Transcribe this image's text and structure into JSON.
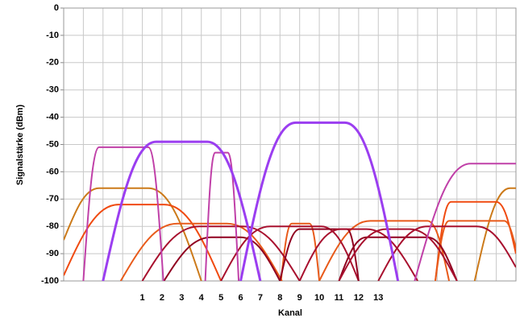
{
  "chart_data": {
    "type": "line",
    "x_label": "Kanal",
    "y_label": "Signalstärke (dBm)",
    "xlim": [
      -3,
      20
    ],
    "ylim": [
      -100,
      0
    ],
    "yticks": [
      0,
      -10,
      -20,
      -30,
      -40,
      -50,
      -60,
      -70,
      -80,
      -90,
      -100
    ],
    "xticks": [
      1,
      2,
      3,
      4,
      5,
      6,
      7,
      8,
      9,
      10,
      11,
      12,
      13
    ],
    "xgrid": [
      -3,
      -2,
      -1,
      0,
      1,
      2,
      3,
      4,
      5,
      6,
      7,
      8,
      9,
      10,
      11,
      12,
      13,
      14,
      15,
      16,
      17,
      18,
      19,
      20
    ],
    "grid": true,
    "series": [
      {
        "color": "#cc7a1a",
        "width": 2,
        "x": [
          -3,
          -1.2,
          1.3,
          4
        ],
        "values": [
          -85,
          -66,
          -66,
          -100
        ]
      },
      {
        "color": "#cc7a1a",
        "width": 2,
        "x": [
          17.9,
          19.7,
          20
        ],
        "values": [
          -100,
          -66,
          -66
        ]
      },
      {
        "color": "#f04a10",
        "width": 2,
        "x": [
          -3,
          -0.2,
          2.1,
          5
        ],
        "values": [
          -98,
          -72,
          -72,
          -100
        ]
      },
      {
        "color": "#f04a10",
        "width": 2,
        "x": [
          15.9,
          16.7,
          19,
          20
        ],
        "values": [
          -100,
          -71,
          -71,
          -90
        ]
      },
      {
        "color": "#e85a1a",
        "width": 2,
        "x": [
          -0.1,
          2.8,
          5.3,
          8.1
        ],
        "values": [
          -100,
          -79,
          -79,
          -100
        ]
      },
      {
        "color": "#e85a1a",
        "width": 2,
        "x": [
          8.05,
          8.6,
          9.5,
          10
        ],
        "values": [
          -100,
          -79,
          -79,
          -100
        ]
      },
      {
        "color": "#e85a1a",
        "width": 2,
        "x": [
          10,
          12.6,
          15.5,
          16.6
        ],
        "values": [
          -100,
          -78,
          -78,
          -100
        ]
      },
      {
        "color": "#e85a1a",
        "width": 2,
        "x": [
          15.9,
          16.6,
          19.4,
          20
        ],
        "values": [
          -100,
          -78,
          -78,
          -88
        ]
      },
      {
        "color": "#a8102e",
        "width": 2,
        "x": [
          1,
          3.9,
          6.1,
          9
        ],
        "values": [
          -100,
          -80,
          -80,
          -100
        ]
      },
      {
        "color": "#900020",
        "width": 2,
        "x": [
          2.1,
          4.5,
          6,
          8
        ],
        "values": [
          -100,
          -84,
          -84,
          -100
        ]
      },
      {
        "color": "#a8102e",
        "width": 2,
        "x": [
          5,
          7.5,
          10.1,
          12
        ],
        "values": [
          -100,
          -80,
          -80,
          -100
        ]
      },
      {
        "color": "#900020",
        "width": 2,
        "x": [
          8,
          9,
          11.4,
          12
        ],
        "values": [
          -100,
          -81,
          -81,
          -100
        ]
      },
      {
        "color": "#a8102e",
        "width": 2,
        "x": [
          9,
          11.1,
          12.4,
          15
        ],
        "values": [
          -100,
          -81,
          -81,
          -100
        ]
      },
      {
        "color": "#900020",
        "width": 2,
        "x": [
          11,
          12.4,
          15.5,
          17
        ],
        "values": [
          -100,
          -84,
          -84,
          -100
        ]
      },
      {
        "color": "#a8102e",
        "width": 2,
        "x": [
          11,
          13.4,
          14.6,
          17
        ],
        "values": [
          -100,
          -81,
          -81,
          -100
        ]
      },
      {
        "color": "#a8102e",
        "width": 2,
        "x": [
          13,
          15.5,
          18,
          20
        ],
        "values": [
          -100,
          -80,
          -80,
          -95
        ]
      },
      {
        "color": "#c040a8",
        "width": 2,
        "x": [
          -2,
          -1.2,
          1.3,
          2.07
        ],
        "values": [
          -100,
          -51,
          -51,
          -100
        ]
      },
      {
        "color": "#c040a8",
        "width": 2,
        "x": [
          4.2,
          4.7,
          5.35,
          5.9
        ],
        "values": [
          -100,
          -53,
          -53,
          -100
        ]
      },
      {
        "color": "#c040a8",
        "width": 2,
        "x": [
          14.85,
          17.7,
          20
        ],
        "values": [
          -100,
          -57,
          -57
        ]
      },
      {
        "color": "#9b3ef0",
        "width": 3,
        "x": [
          -1,
          1.7,
          4.3,
          7
        ],
        "values": [
          -100,
          -49,
          -49,
          -100
        ]
      },
      {
        "color": "#9b3ef0",
        "width": 3,
        "x": [
          6,
          8.8,
          11.3,
          14
        ],
        "values": [
          -100,
          -42,
          -42,
          -100
        ]
      }
    ]
  }
}
